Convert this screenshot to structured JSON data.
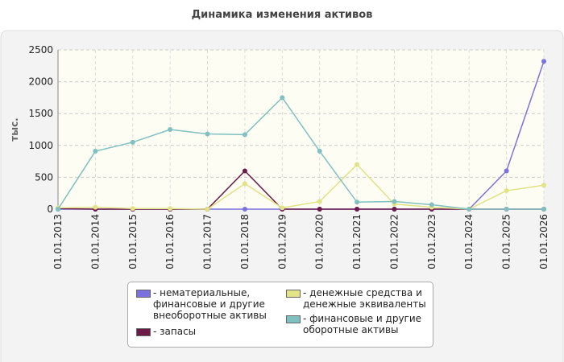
{
  "chart_data": {
    "type": "line",
    "title": "Динамика изменения активов",
    "y_label": "тыс.",
    "categories": [
      "01.01.2013",
      "01.01.2014",
      "01.01.2015",
      "01.01.2016",
      "01.01.2017",
      "01.01.2018",
      "01.01.2019",
      "01.01.2020",
      "01.01.2021",
      "01.01.2022",
      "01.01.2023",
      "01.01.2024",
      "01.01.2025",
      "01.01.2026"
    ],
    "series": [
      {
        "name": "- нематериальные, финансовые и другие внеоборотные активы",
        "color": "#7b72e0",
        "values": [
          0,
          0,
          0,
          0,
          0,
          0,
          0,
          0,
          0,
          0,
          0,
          0,
          600,
          2320
        ]
      },
      {
        "name": "- запасы",
        "color": "#6b1a4a",
        "values": [
          10,
          0,
          0,
          0,
          0,
          600,
          0,
          0,
          0,
          0,
          0,
          0,
          0,
          0
        ]
      },
      {
        "name": "- денежные средства и денежные эквиваленты",
        "color": "#e2e286",
        "values": [
          20,
          30,
          10,
          10,
          0,
          400,
          20,
          120,
          700,
          80,
          30,
          0,
          290,
          375
        ]
      },
      {
        "name": "- финансовые и другие оборотные активы",
        "color": "#80c0c0",
        "values": [
          0,
          910,
          1050,
          1250,
          1180,
          1170,
          1750,
          910,
          110,
          120,
          70,
          0,
          0,
          0
        ]
      }
    ],
    "ylim": [
      0,
      2500
    ],
    "yticks": [
      0,
      500,
      1000,
      1500,
      2000,
      2500
    ],
    "grid": true
  }
}
